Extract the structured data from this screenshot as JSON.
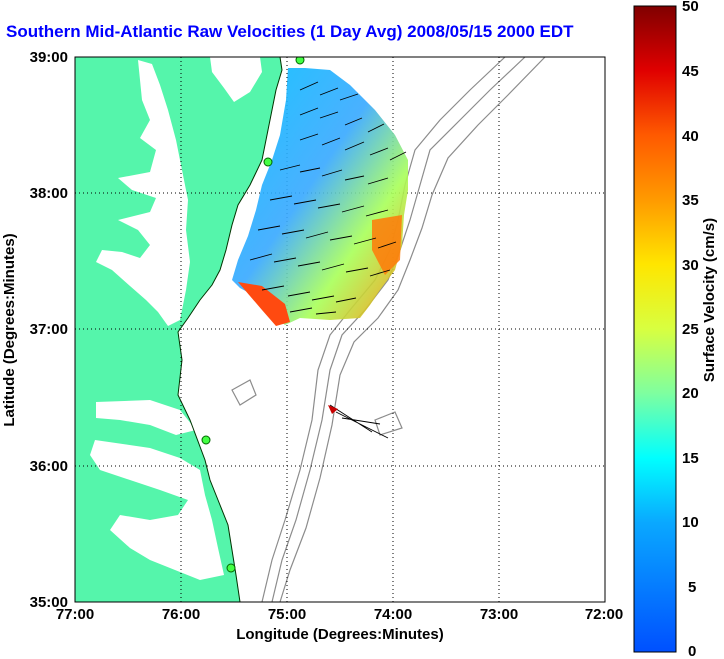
{
  "title": "Southern Mid-Atlantic Raw Velocities (1 Day Avg) 2008/05/15 2000 EDT",
  "map": {
    "x_axis_label": "Longitude (Degrees:Minutes)",
    "y_axis_label": "Latitude (Degrees:Minutes)",
    "x_ticks": [
      "77:00",
      "76:00",
      "75:00",
      "74:00",
      "73:00",
      "72:00"
    ],
    "y_ticks": [
      "39:00",
      "38:00",
      "37:00",
      "36:00",
      "35:00"
    ],
    "lon_range": [
      -77,
      -72
    ],
    "lat_range": [
      35,
      39
    ],
    "grid": "dotted",
    "land_color": "#55f5ab",
    "bathymetry_color": "#8c8c8c"
  },
  "colorbar": {
    "label": "Surface Velocity (cm/s)",
    "ticks": [
      "50",
      "45",
      "40",
      "35",
      "30",
      "25",
      "20",
      "15",
      "10",
      "5",
      "0"
    ],
    "range": [
      0,
      50
    ],
    "units": "cm/s"
  },
  "radar_sites": [
    "site-north",
    "site-cape-henlopen",
    "site-cape-hatteras-north",
    "site-cape-hatteras-south"
  ]
}
